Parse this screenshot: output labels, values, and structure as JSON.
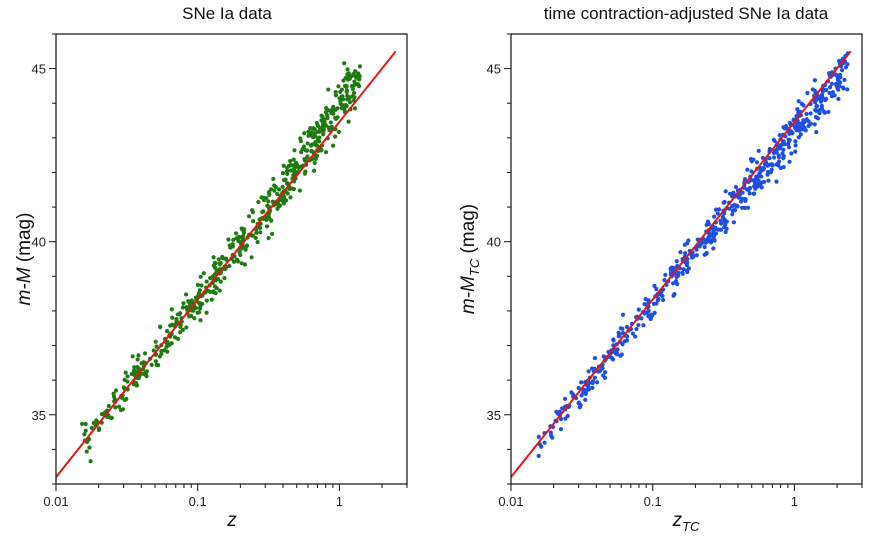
{
  "chart_data": [
    {
      "type": "scatter",
      "title": "SNe Ia data",
      "xlabel": {
        "main": "z",
        "sub": ""
      },
      "ylabel": {
        "main": "m-M",
        "sub": "",
        "unit": " (mag)"
      },
      "xscale": "log",
      "xlim": [
        0.01,
        3.0
      ],
      "ylim": [
        33.0,
        46.0
      ],
      "xticks": [
        0.01,
        0.1,
        1
      ],
      "xtick_labels": [
        "0.01",
        "0.1",
        "1"
      ],
      "yticks": [
        35,
        40,
        45
      ],
      "ytick_labels": [
        "35",
        "40",
        "45"
      ],
      "grid": false,
      "series": [
        {
          "kind": "points",
          "color": "#1f7a12",
          "n_points": 580,
          "z_range": [
            0.015,
            1.4
          ],
          "model": "m-M = 43.2 + 5*log10(z) + 0.30*z",
          "scatter_mag": 0.22
        },
        {
          "kind": "line",
          "color": "#e01818",
          "x": [
            0.01,
            2.5
          ],
          "y": [
            33.2,
            45.5
          ]
        }
      ]
    },
    {
      "type": "scatter",
      "title": "time contraction-adjusted SNe Ia data",
      "xlabel": {
        "main": "z",
        "sub": "TC"
      },
      "ylabel": {
        "main": "m-M",
        "sub": "TC",
        "unit": " (mag)"
      },
      "xscale": "log",
      "xlim": [
        0.01,
        3.0
      ],
      "ylim": [
        33.0,
        46.0
      ],
      "xticks": [
        0.01,
        0.1,
        1
      ],
      "xtick_labels": [
        "0.01",
        "0.1",
        "1"
      ],
      "yticks": [
        35,
        40,
        45
      ],
      "ytick_labels": [
        "35",
        "40",
        "45"
      ],
      "grid": false,
      "series": [
        {
          "kind": "points",
          "color": "#1d4fe0",
          "n_points": 580,
          "z_range": [
            0.015,
            2.4
          ],
          "model": "m-M = 43.15 + 5*log10(z)",
          "scatter_mag": 0.2
        },
        {
          "kind": "line",
          "color": "#e01818",
          "x": [
            0.01,
            2.5
          ],
          "y": [
            33.2,
            45.5
          ]
        }
      ]
    }
  ]
}
